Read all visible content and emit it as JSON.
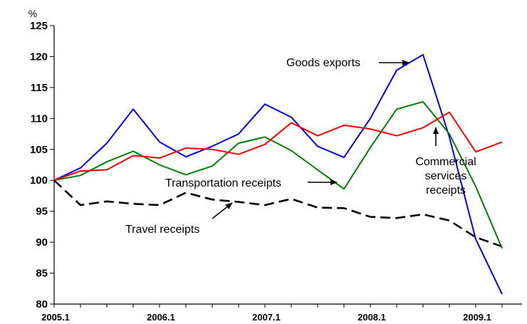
{
  "chart_data": {
    "type": "line",
    "ylabel": "%",
    "ylim": [
      80,
      125
    ],
    "yticks": [
      80,
      85,
      90,
      95,
      100,
      105,
      110,
      115,
      120,
      125
    ],
    "x": [
      "2005.1",
      "2005.2",
      "2005.3",
      "2005.4",
      "2006.1",
      "2006.2",
      "2006.3",
      "2006.4",
      "2007.1",
      "2007.2",
      "2007.3",
      "2007.4",
      "2008.1",
      "2008.2",
      "2008.3",
      "2008.4",
      "2009.1",
      "2009.2"
    ],
    "xtick_labels": [
      "2005.1",
      "2006.1",
      "2007.1",
      "2008.1",
      "2009.1"
    ],
    "grid": false,
    "legend": "none",
    "series": [
      {
        "name": "Goods exports",
        "color": "#0000ff",
        "style": "solid",
        "values": [
          100,
          102,
          106,
          111.5,
          106.2,
          103.8,
          105.5,
          107.5,
          112.3,
          110.2,
          105.5,
          103.7,
          110,
          117.8,
          120.3,
          107,
          90.5,
          81.6
        ]
      },
      {
        "name": "Transportation receipts",
        "color": "#008000",
        "style": "solid",
        "values": [
          100,
          100.8,
          103,
          104.7,
          102.5,
          100.9,
          102.3,
          106,
          107,
          104.8,
          101.7,
          98.6,
          105.3,
          111.5,
          112.7,
          107.5,
          99,
          89
        ]
      },
      {
        "name": "Commercial services receipts",
        "color": "#ff0000",
        "style": "solid",
        "values": [
          100,
          101.5,
          101.7,
          104,
          103.6,
          105.2,
          105,
          104.2,
          105.8,
          109.3,
          107.2,
          108.9,
          108.3,
          107.2,
          108.5,
          111,
          104.6,
          106.2
        ]
      },
      {
        "name": "Travel receipts",
        "color": "#000000",
        "style": "dashed",
        "values": [
          100,
          96,
          96.6,
          96.2,
          96,
          98,
          96.9,
          96.5,
          96,
          97,
          95.6,
          95.5,
          94.1,
          93.9,
          94.5,
          93.5,
          90.8,
          89.3
        ]
      }
    ],
    "annotations": [
      {
        "lines": [
          "Goods exports"
        ],
        "series": "Goods exports"
      },
      {
        "lines": [
          "Commercial",
          "services",
          "receipts"
        ],
        "series": "Commercial services receipts"
      },
      {
        "lines": [
          "Transportation receipts"
        ],
        "series": "Transportation receipts"
      },
      {
        "lines": [
          "Travel receipts"
        ],
        "series": "Travel receipts"
      }
    ]
  }
}
